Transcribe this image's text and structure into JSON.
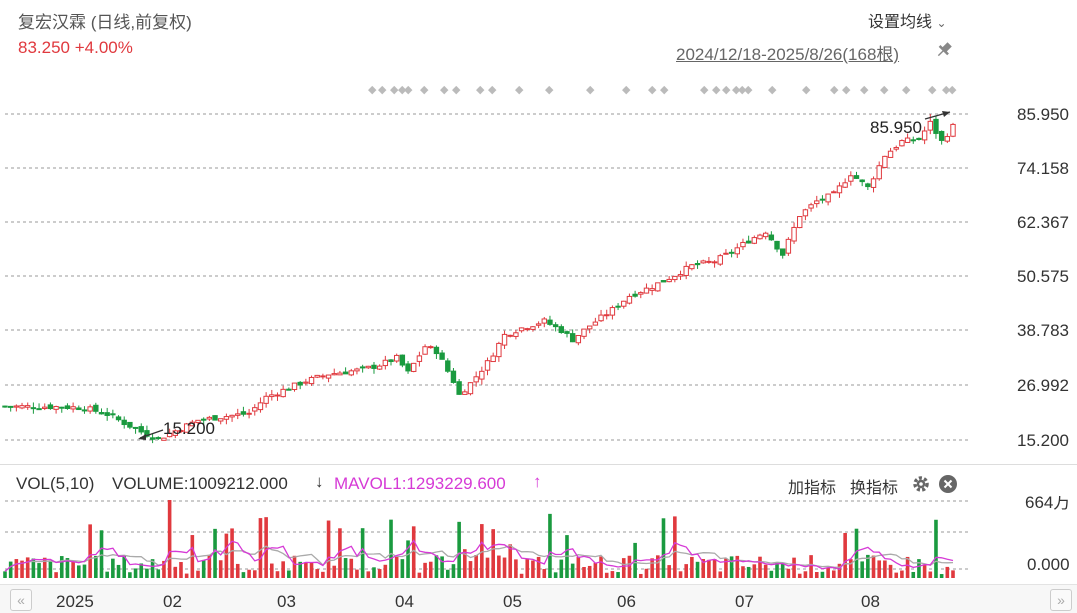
{
  "header": {
    "title": "复宏汉霖 (日线,前复权)",
    "price": "83.250",
    "change": "+4.00%",
    "settings_label": "设置均线",
    "settings_chevron": "⌄",
    "date_range": "2024/12/18-2025/8/26(168根)"
  },
  "price_axis": [
    "85.950",
    "74.158",
    "62.367",
    "50.575",
    "38.783",
    "26.992",
    "15.200"
  ],
  "annotations": {
    "high": "85.950",
    "low": "15.200"
  },
  "volume_panel": {
    "vol_label": "VOL(5,10)",
    "volume": "VOLUME:1009212.000",
    "volume_arrow": "↓",
    "mavol": "MAVOL1:1293229.600",
    "mavol_arrow": "↑",
    "add_indicator": "加指标",
    "switch_indicator": "换指标",
    "axis_top": "664万",
    "axis_bottom": "0.000"
  },
  "time_axis": [
    "2025",
    "02",
    "03",
    "04",
    "05",
    "06",
    "07",
    "08"
  ],
  "colors": {
    "up": "#e0393e",
    "down": "#1a9a3f",
    "ma_purple": "#d63ad6",
    "ma_gray": "#aaaaaa",
    "grid": "#999999"
  }
}
